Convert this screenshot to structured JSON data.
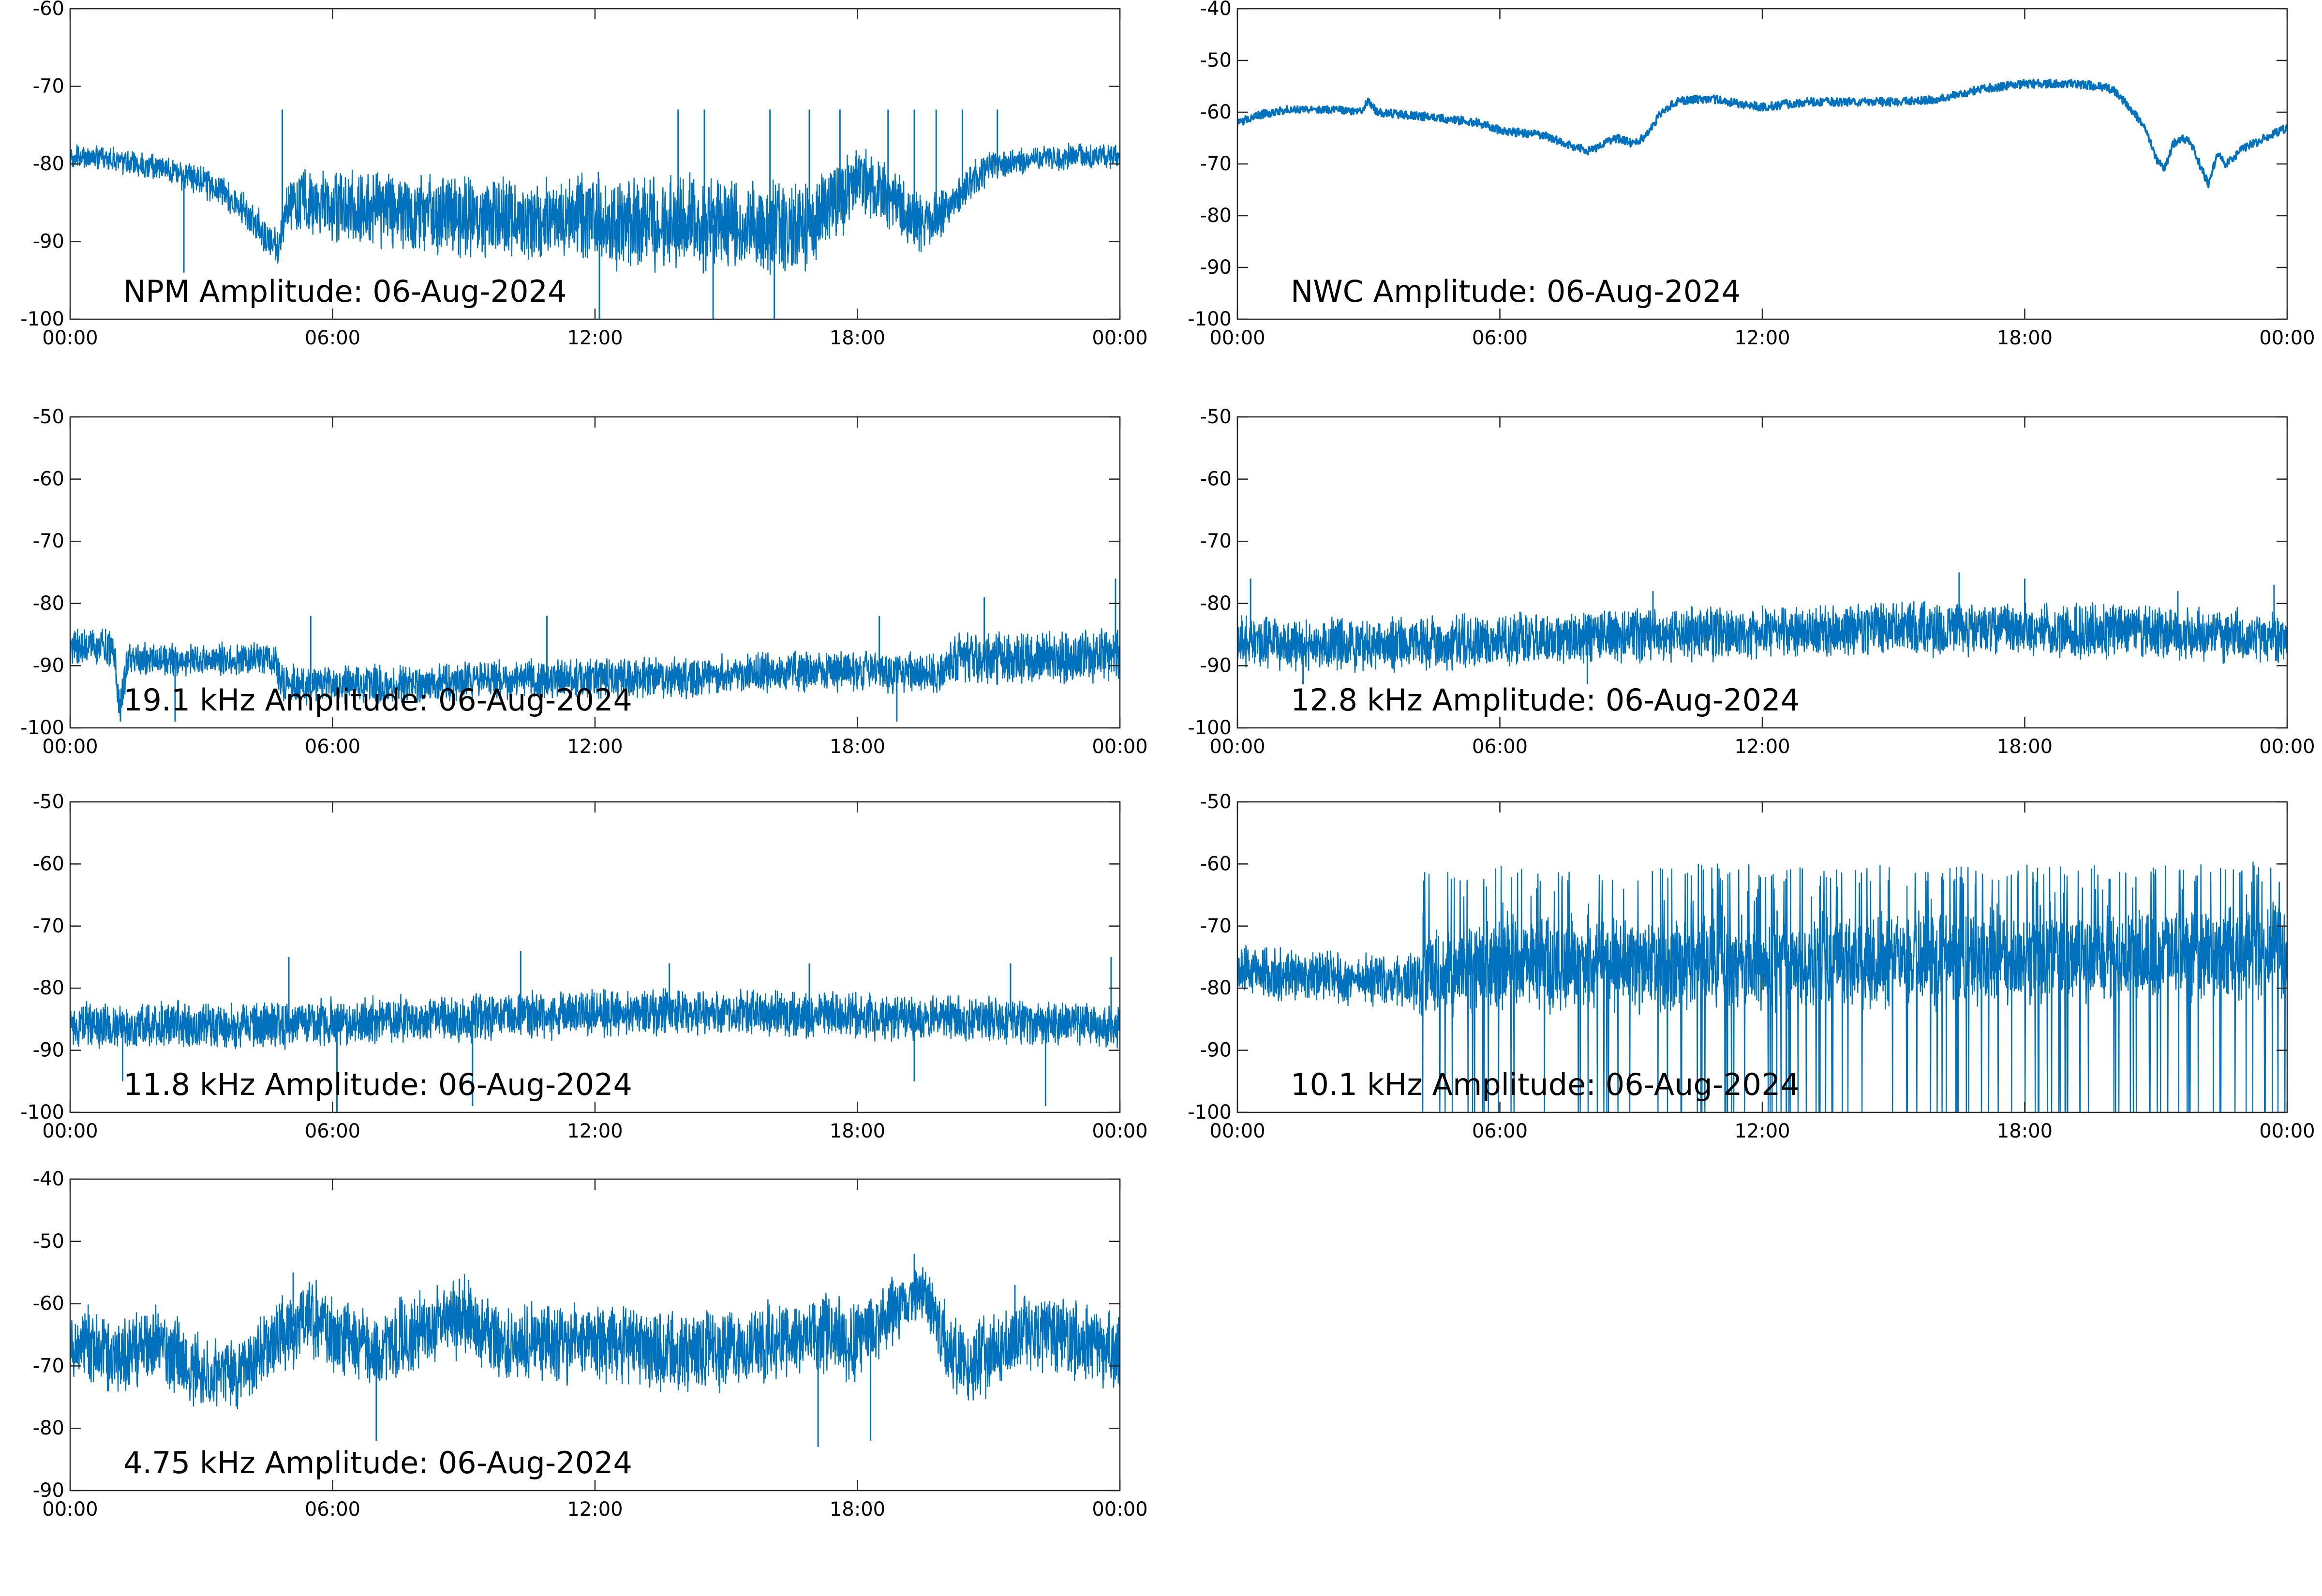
{
  "figure": {
    "background": "#ffffff",
    "line_color": "#0072bd",
    "axes_color": "#262626"
  },
  "chart_data": [
    {
      "type": "line",
      "title": "NPM Amplitude: 06-Aug-2024",
      "xlabel": "",
      "ylabel": "",
      "x_range": [
        "00:00",
        "24:00"
      ],
      "xticks": [
        "00:00",
        "06:00",
        "12:00",
        "18:00",
        "00:00"
      ],
      "ylim": [
        -100,
        -60
      ],
      "yticks": [
        -60,
        -70,
        -80,
        -90,
        -100
      ],
      "grid": false,
      "series": [
        {
          "color": "#0072bd",
          "style": "noisy",
          "x_hours": [
            0,
            1,
            2,
            3,
            4,
            4.6,
            4.8,
            5,
            5.5,
            6,
            7,
            8,
            9,
            10,
            11,
            12,
            13,
            14,
            15,
            16,
            16.5,
            17,
            17.5,
            18,
            18.5,
            19,
            19.5,
            20,
            20.5,
            21,
            22,
            23,
            24
          ],
          "y_center": [
            -79,
            -79.5,
            -80.5,
            -82,
            -86,
            -90,
            -91,
            -84,
            -85,
            -85.5,
            -86,
            -86.5,
            -86.5,
            -87,
            -87,
            -87,
            -87.5,
            -87.5,
            -88,
            -88,
            -88,
            -87.5,
            -85,
            -82,
            -83,
            -86,
            -88,
            -86,
            -83,
            -80.5,
            -79.5,
            -79,
            -79
          ],
          "spread": [
            1.5,
            1.5,
            1.5,
            2,
            2,
            2.5,
            2.5,
            4,
            4,
            4,
            5,
            5,
            5,
            5,
            5,
            5.5,
            5.5,
            5.5,
            5.5,
            5.5,
            5.5,
            5,
            5,
            4,
            4,
            4,
            3.5,
            3,
            2.5,
            2,
            1.5,
            1.5,
            1.5
          ],
          "spikes_up": [
            [
              4.85,
              -73
            ],
            [
              13.9,
              -73
            ],
            [
              14.5,
              -73
            ],
            [
              16.0,
              -73
            ],
            [
              16.9,
              -73
            ],
            [
              17.6,
              -73
            ],
            [
              18.7,
              -73
            ],
            [
              19.3,
              -73
            ],
            [
              19.8,
              -73
            ],
            [
              20.4,
              -73
            ],
            [
              21.2,
              -73
            ]
          ],
          "spikes_down": [
            [
              2.6,
              -94
            ],
            [
              12.1,
              -100
            ],
            [
              14.7,
              -100
            ],
            [
              16.1,
              -100
            ]
          ]
        }
      ]
    },
    {
      "type": "line",
      "title": "NWC Amplitude: 06-Aug-2024",
      "xlabel": "",
      "ylabel": "",
      "x_range": [
        "00:00",
        "24:00"
      ],
      "xticks": [
        "00:00",
        "06:00",
        "12:00",
        "18:00",
        "00:00"
      ],
      "ylim": [
        -100,
        -40
      ],
      "yticks": [
        -40,
        -50,
        -60,
        -70,
        -80,
        -90,
        -100
      ],
      "grid": false,
      "series": [
        {
          "color": "#0072bd",
          "style": "smooth",
          "x_hours": [
            0,
            0.5,
            1.2,
            2,
            2.8,
            3.0,
            3.2,
            3.5,
            4.5,
            5.5,
            6,
            7,
            7.5,
            8,
            8.3,
            8.7,
            9,
            9.3,
            9.7,
            10,
            10.5,
            11,
            11.5,
            12,
            13,
            14,
            15,
            16,
            17,
            17.5,
            18,
            19,
            19.5,
            20,
            20.5,
            20.8,
            21,
            21.2,
            21.4,
            21.6,
            21.8,
            22.0,
            22.2,
            22.4,
            22.6,
            23,
            23.5,
            24
          ],
          "y": [
            -62,
            -60.5,
            -59.5,
            -59.5,
            -59.8,
            -58,
            -60,
            -60.2,
            -61,
            -62,
            -63.5,
            -64.5,
            -66,
            -67.5,
            -66.5,
            -65,
            -66,
            -65,
            -60,
            -58,
            -57.5,
            -57.5,
            -58.5,
            -59,
            -58,
            -58,
            -58,
            -57.5,
            -55.5,
            -55,
            -54.5,
            -54.5,
            -54.8,
            -55.5,
            -60,
            -64,
            -69,
            -71,
            -66,
            -65,
            -66,
            -70,
            -74,
            -68,
            -70,
            -67,
            -65,
            -63
          ],
          "spread": 0.8
        }
      ]
    },
    {
      "type": "line",
      "title": "19.1 kHz Amplitude: 06-Aug-2024",
      "xlabel": "",
      "ylabel": "",
      "x_range": [
        "00:00",
        "24:00"
      ],
      "xticks": [
        "00:00",
        "06:00",
        "12:00",
        "18:00",
        "00:00"
      ],
      "ylim": [
        -100,
        -50
      ],
      "yticks": [
        -50,
        -60,
        -70,
        -80,
        -90,
        -100
      ],
      "grid": false,
      "series": [
        {
          "color": "#0072bd",
          "style": "noisy",
          "x_hours": [
            0,
            1,
            1.1,
            1.2,
            1.3,
            2,
            3,
            4,
            4.7,
            4.8,
            5,
            6,
            8,
            10,
            12,
            14,
            16,
            18,
            19,
            19.5,
            20,
            20.2,
            22,
            24
          ],
          "y_center": [
            -87,
            -87,
            -96,
            -95,
            -89,
            -89,
            -89,
            -89,
            -89,
            -93,
            -93,
            -93,
            -93,
            -92,
            -92,
            -92,
            -91,
            -91,
            -91,
            -91,
            -91,
            -89,
            -89,
            -88
          ],
          "spread": [
            3,
            3,
            3,
            3,
            2.5,
            2.5,
            2.5,
            2.5,
            2.5,
            3,
            3,
            3,
            3,
            3,
            3,
            3,
            3,
            3,
            3,
            3,
            3,
            4,
            4,
            4
          ],
          "spikes_up": [
            [
              5.5,
              -82
            ],
            [
              10.9,
              -82
            ],
            [
              18.5,
              -82
            ],
            [
              20.9,
              -79
            ],
            [
              23.9,
              -76
            ]
          ],
          "spikes_down": [
            [
              1.15,
              -99
            ],
            [
              2.4,
              -99
            ],
            [
              18.9,
              -99
            ]
          ]
        }
      ]
    },
    {
      "type": "line",
      "title": "12.8 kHz Amplitude: 06-Aug-2024",
      "xlabel": "",
      "ylabel": "",
      "x_range": [
        "00:00",
        "24:00"
      ],
      "xticks": [
        "00:00",
        "06:00",
        "12:00",
        "18:00",
        "00:00"
      ],
      "ylim": [
        -100,
        -50
      ],
      "yticks": [
        -50,
        -60,
        -70,
        -80,
        -90,
        -100
      ],
      "grid": false,
      "series": [
        {
          "color": "#0072bd",
          "style": "noisy",
          "x_hours": [
            0,
            2,
            4,
            6,
            8,
            10,
            12,
            14,
            16,
            18,
            20,
            22,
            24
          ],
          "y_center": [
            -86,
            -86.5,
            -86.5,
            -86,
            -85.5,
            -85,
            -84.5,
            -84,
            -84,
            -84,
            -84.5,
            -85,
            -85.5
          ],
          "spread": [
            4,
            4,
            4,
            4,
            4,
            4,
            4,
            4,
            4,
            4,
            4,
            4,
            4
          ],
          "spikes_up": [
            [
              0.3,
              -76
            ],
            [
              9.5,
              -78
            ],
            [
              16.5,
              -75
            ],
            [
              18.0,
              -76
            ],
            [
              21.5,
              -78
            ],
            [
              23.7,
              -77
            ]
          ],
          "spikes_down": [
            [
              1.5,
              -93
            ],
            [
              8.0,
              -93
            ]
          ]
        }
      ]
    },
    {
      "type": "line",
      "title": "11.8 kHz Amplitude: 06-Aug-2024",
      "xlabel": "",
      "ylabel": "",
      "x_range": [
        "00:00",
        "24:00"
      ],
      "xticks": [
        "00:00",
        "06:00",
        "12:00",
        "18:00",
        "00:00"
      ],
      "ylim": [
        -100,
        -50
      ],
      "yticks": [
        -50,
        -60,
        -70,
        -80,
        -90,
        -100
      ],
      "grid": false,
      "series": [
        {
          "color": "#0072bd",
          "style": "noisy",
          "x_hours": [
            0,
            2,
            4,
            6,
            8,
            10,
            12,
            14,
            16,
            18,
            20,
            22,
            24
          ],
          "y_center": [
            -86,
            -86,
            -86,
            -85.5,
            -85,
            -84.5,
            -84,
            -84,
            -84,
            -84.5,
            -85,
            -85.5,
            -86
          ],
          "spread": [
            3.5,
            3.5,
            3.5,
            3.5,
            3.5,
            3.5,
            3.5,
            3.5,
            3.5,
            3.5,
            3.5,
            3.5,
            3.5
          ],
          "spikes_up": [
            [
              5.0,
              -75
            ],
            [
              10.3,
              -74
            ],
            [
              13.7,
              -76
            ],
            [
              16.9,
              -76
            ],
            [
              21.5,
              -76
            ],
            [
              23.8,
              -75
            ]
          ],
          "spikes_down": [
            [
              1.2,
              -95
            ],
            [
              6.1,
              -100
            ],
            [
              9.2,
              -99
            ],
            [
              19.3,
              -95
            ],
            [
              22.3,
              -99
            ]
          ]
        }
      ]
    },
    {
      "type": "line",
      "title": "10.1 kHz Amplitude: 06-Aug-2024",
      "xlabel": "",
      "ylabel": "",
      "x_range": [
        "00:00",
        "24:00"
      ],
      "xticks": [
        "00:00",
        "06:00",
        "12:00",
        "18:00",
        "00:00"
      ],
      "ylim": [
        -100,
        -50
      ],
      "yticks": [
        -50,
        -60,
        -70,
        -80,
        -90,
        -100
      ],
      "grid": false,
      "series": [
        {
          "color": "#0072bd",
          "style": "bursts",
          "x_hours": [
            0,
            1,
            2,
            3,
            4,
            4.2,
            6,
            8,
            10,
            12,
            14,
            16,
            18,
            20,
            22,
            23.5,
            24
          ],
          "y_center": [
            -77,
            -78,
            -78,
            -79,
            -79,
            -78,
            -76,
            -76,
            -76,
            -76,
            -76,
            -76,
            -75,
            -75,
            -75,
            -74,
            -74
          ],
          "spread": [
            4,
            4,
            4,
            4,
            4,
            6,
            7,
            7,
            7,
            7,
            7,
            7,
            7,
            7,
            7,
            7,
            7
          ],
          "bursts": {
            "start_hour": 4.2,
            "end_hour": 24,
            "top": -63,
            "bottom": -100
          }
        }
      ]
    },
    {
      "type": "line",
      "title": "4.75 kHz Amplitude: 06-Aug-2024",
      "xlabel": "",
      "ylabel": "",
      "x_range": [
        "00:00",
        "24:00"
      ],
      "xticks": [
        "00:00",
        "06:00",
        "12:00",
        "18:00",
        "00:00"
      ],
      "ylim": [
        -90,
        -40
      ],
      "yticks": [
        -40,
        -50,
        -60,
        -70,
        -80,
        -90
      ],
      "grid": false,
      "series": [
        {
          "color": "#0072bd",
          "style": "noisy",
          "x_hours": [
            0,
            1,
            2,
            3,
            4,
            5,
            5.5,
            6,
            7,
            8,
            9,
            10,
            11,
            12,
            13,
            14,
            15,
            16,
            17,
            18,
            19,
            19.5,
            20,
            20.5,
            21,
            22,
            23,
            24
          ],
          "y_center": [
            -66,
            -68,
            -66,
            -72,
            -71,
            -64,
            -62,
            -65,
            -68,
            -64,
            -62,
            -67,
            -66,
            -66,
            -67,
            -68,
            -67,
            -66,
            -64,
            -66,
            -60,
            -58,
            -66,
            -70,
            -68,
            -64,
            -66,
            -68
          ],
          "spread": [
            6,
            6,
            6,
            6,
            6,
            6,
            6,
            6,
            6,
            6,
            6,
            6,
            6,
            6,
            6,
            6,
            6,
            6,
            6,
            6,
            5,
            4,
            6,
            6,
            6,
            6,
            6,
            6
          ],
          "spikes_up": [
            [
              5.1,
              -55
            ],
            [
              8.9,
              -56
            ],
            [
              19.3,
              -52
            ],
            [
              21.6,
              -57
            ]
          ],
          "spikes_down": [
            [
              7.0,
              -82
            ],
            [
              17.1,
              -83
            ],
            [
              18.3,
              -82
            ]
          ]
        }
      ]
    }
  ]
}
